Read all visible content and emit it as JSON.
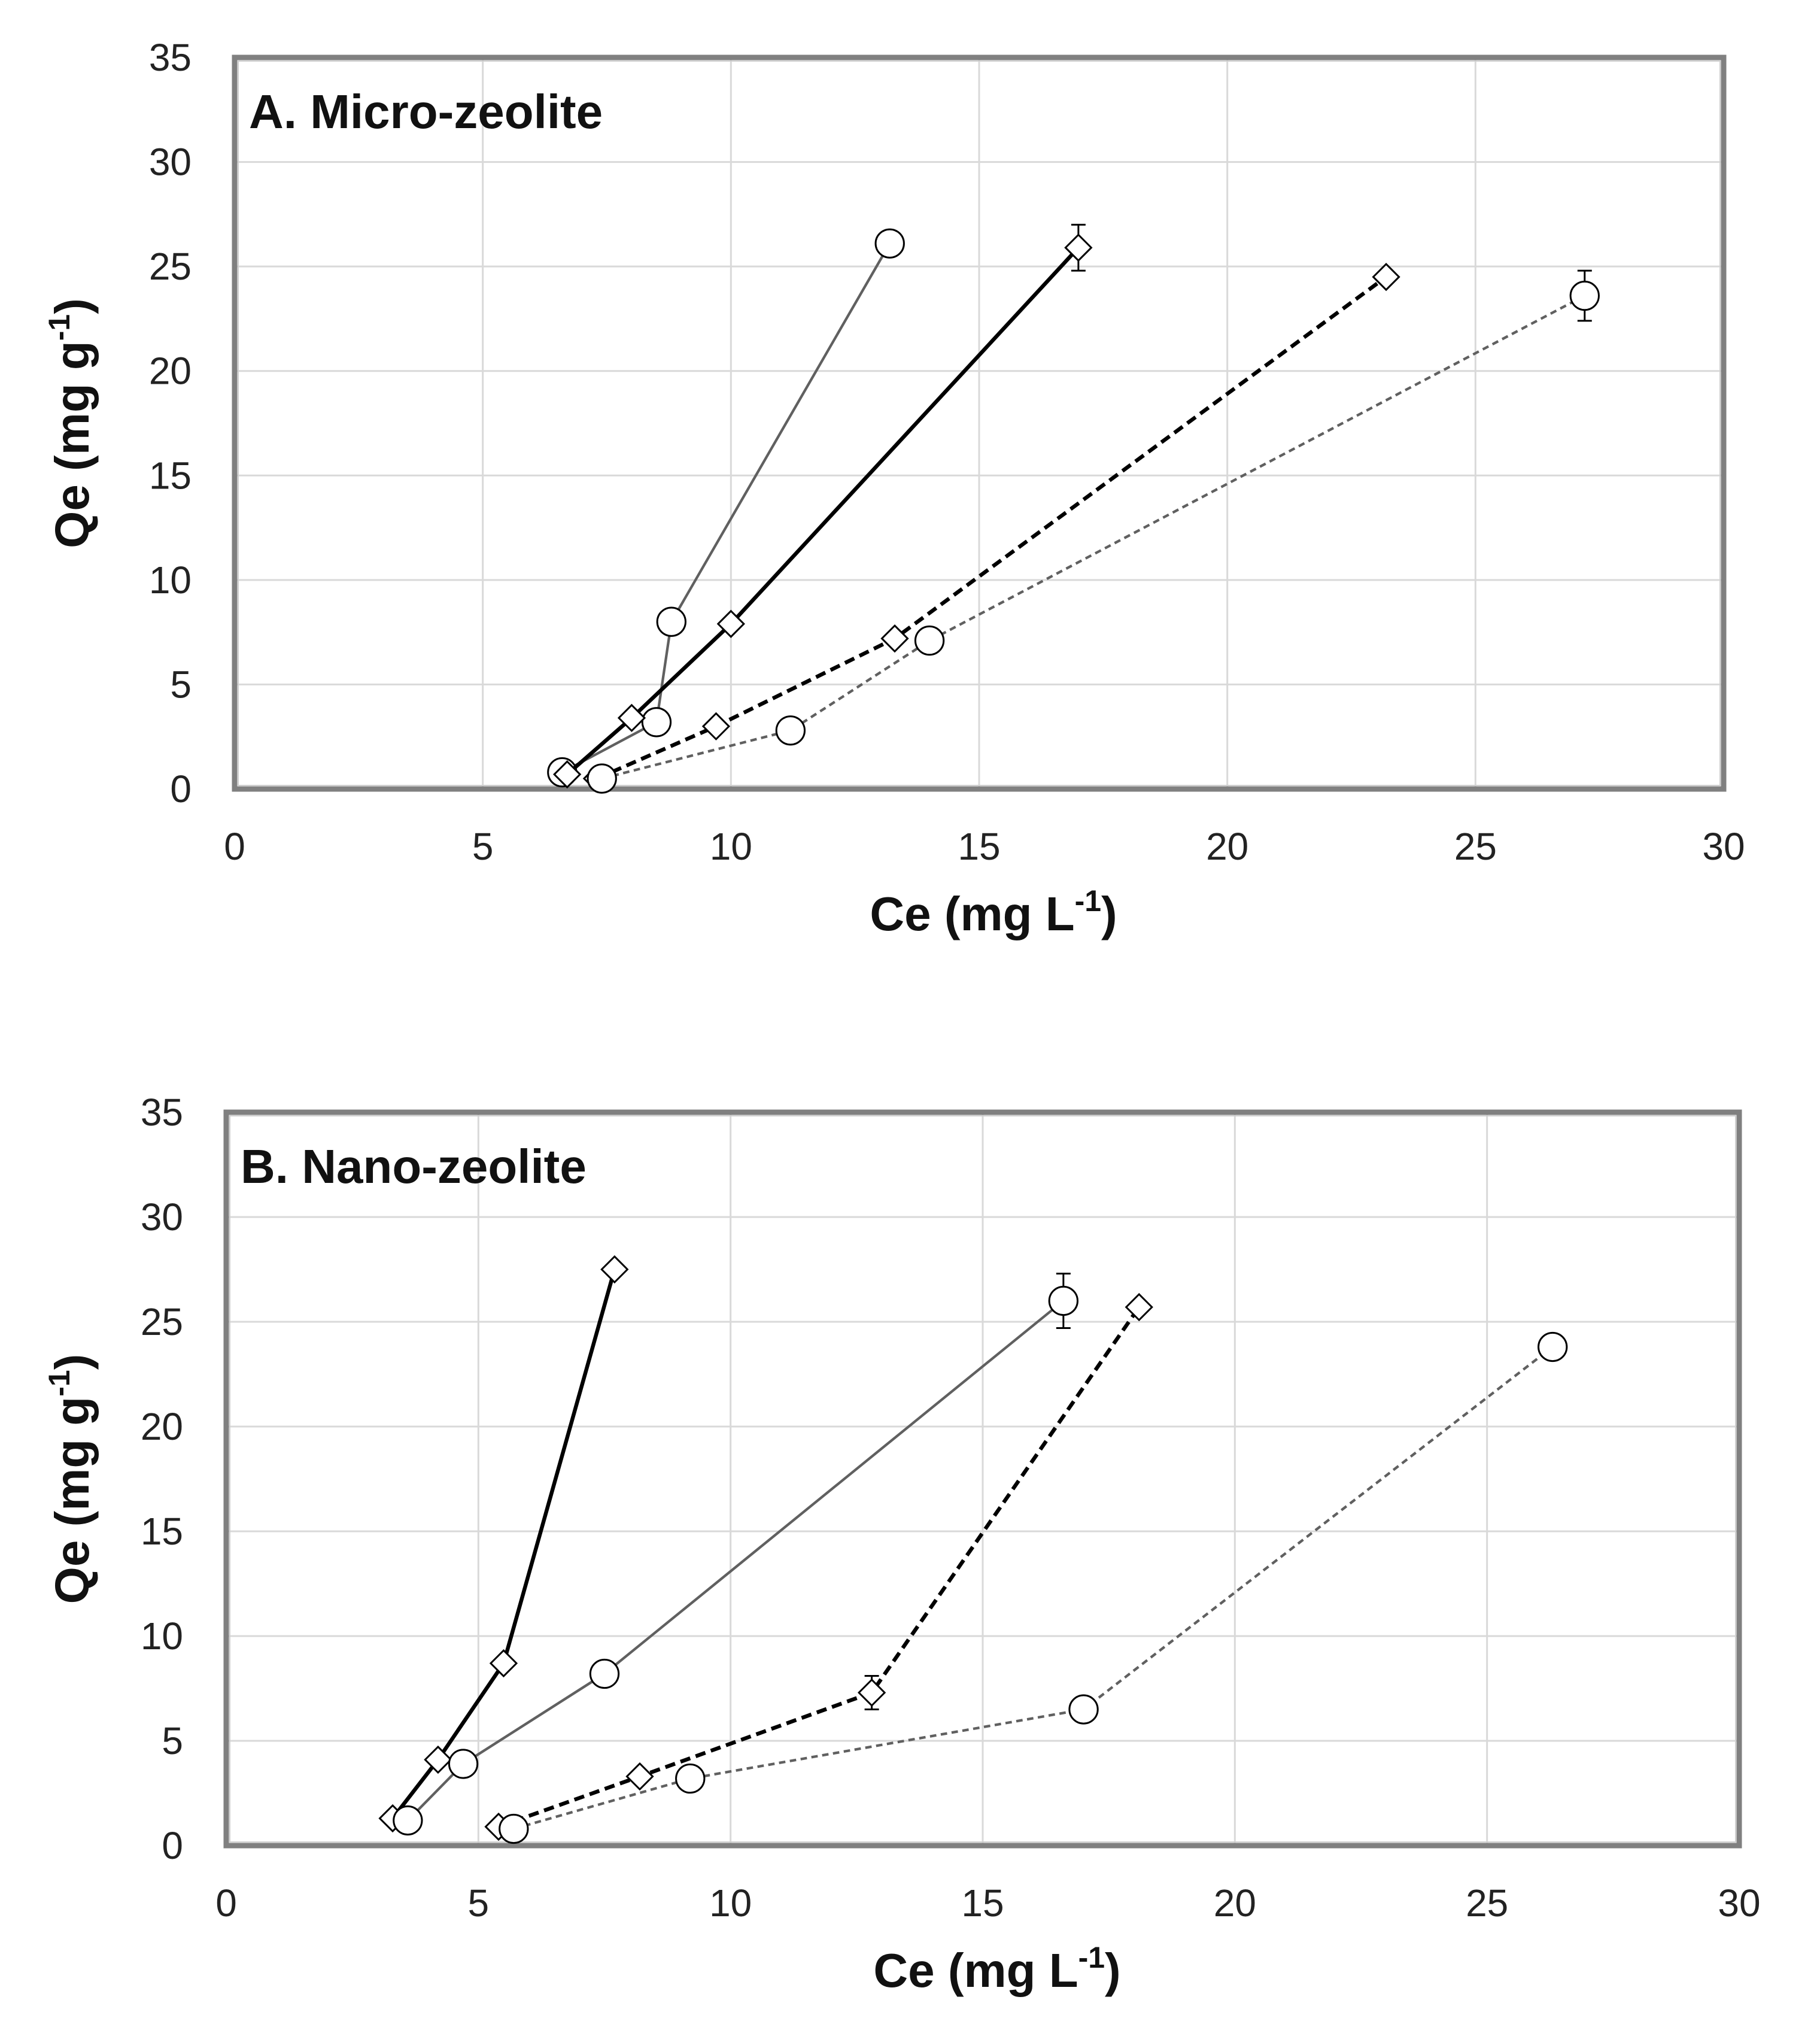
{
  "chart_data": [
    {
      "type": "line",
      "title": "A. Micro-zeolite",
      "xlabel": "Ce (mg L-1)",
      "xlabel_main": "Ce (mg L",
      "xlabel_sup": "-1",
      "xlabel_end": ")",
      "ylabel_main": "Qe (mg  g",
      "ylabel_sup": "-1",
      "ylabel_end": ")",
      "xlim": [
        0,
        30
      ],
      "ylim": [
        0,
        35
      ],
      "xticks": [
        0,
        5,
        10,
        15,
        20,
        25,
        30
      ],
      "yticks": [
        0,
        5,
        10,
        15,
        20,
        25,
        30,
        35
      ],
      "xtick_labels": [
        "0",
        "5",
        "10",
        "15",
        "20",
        "25",
        "30"
      ],
      "ytick_labels": [
        "0",
        "5",
        "10",
        "15",
        "20",
        "25",
        "30",
        "35"
      ],
      "grid": true,
      "series": [
        {
          "name": "gray-solid-circle",
          "color": "#606060",
          "dash": "solid",
          "width": 2,
          "marker": "circle",
          "points": [
            [
              6.6,
              0.8
            ],
            [
              8.5,
              3.2
            ],
            [
              8.8,
              8.0
            ],
            [
              13.2,
              26.1
            ]
          ],
          "errors": [
            0,
            0,
            0,
            0
          ]
        },
        {
          "name": "black-solid-diamond",
          "color": "#000000",
          "dash": "solid",
          "width": 3,
          "marker": "diamond",
          "points": [
            [
              6.7,
              0.7
            ],
            [
              8.0,
              3.4
            ],
            [
              10.0,
              7.9
            ],
            [
              17.0,
              25.9
            ]
          ],
          "errors": [
            0,
            0,
            0,
            1.1
          ]
        },
        {
          "name": "black-dashed-diamond",
          "color": "#000000",
          "dash": "dashed",
          "width": 3,
          "marker": "diamond",
          "points": [
            [
              7.3,
              0.5
            ],
            [
              9.7,
              3.0
            ],
            [
              13.3,
              7.2
            ],
            [
              23.2,
              24.5
            ]
          ],
          "errors": [
            0,
            0,
            0,
            0
          ]
        },
        {
          "name": "gray-dashed-circle",
          "color": "#606060",
          "dash": "dashed",
          "width": 2,
          "marker": "circle",
          "points": [
            [
              7.4,
              0.5
            ],
            [
              11.2,
              2.8
            ],
            [
              14.0,
              7.1
            ],
            [
              27.2,
              23.6
            ]
          ],
          "errors": [
            0,
            0,
            0,
            1.2
          ]
        }
      ]
    },
    {
      "type": "line",
      "title": "B. Nano-zeolite",
      "xlabel": "Ce (mg L-1)",
      "xlabel_main": "Ce (mg L",
      "xlabel_sup": "-1",
      "xlabel_end": ")",
      "ylabel_main": "Qe (mg  g",
      "ylabel_sup": "-1",
      "ylabel_end": ")",
      "xlim": [
        0,
        30
      ],
      "ylim": [
        0,
        35
      ],
      "xticks": [
        0,
        5,
        10,
        15,
        20,
        25,
        30
      ],
      "yticks": [
        0,
        5,
        10,
        15,
        20,
        25,
        30,
        35
      ],
      "xtick_labels": [
        "0",
        "5",
        "10",
        "15",
        "20",
        "25",
        "30"
      ],
      "ytick_labels": [
        "0",
        "5",
        "10",
        "15",
        "20",
        "25",
        "30",
        "35"
      ],
      "grid": true,
      "series": [
        {
          "name": "black-solid-diamond",
          "color": "#000000",
          "dash": "solid",
          "width": 3,
          "marker": "diamond",
          "points": [
            [
              3.3,
              1.3
            ],
            [
              4.2,
              4.1
            ],
            [
              5.5,
              8.7
            ],
            [
              7.7,
              27.5
            ]
          ],
          "errors": [
            0,
            0,
            0,
            0
          ]
        },
        {
          "name": "gray-solid-circle",
          "color": "#606060",
          "dash": "solid",
          "width": 2,
          "marker": "circle",
          "points": [
            [
              3.6,
              1.2
            ],
            [
              4.7,
              3.9
            ],
            [
              7.5,
              8.2
            ],
            [
              16.6,
              26.0
            ]
          ],
          "errors": [
            0,
            0,
            0,
            1.3
          ]
        },
        {
          "name": "black-dashed-diamond",
          "color": "#000000",
          "dash": "dashed",
          "width": 3,
          "marker": "diamond",
          "points": [
            [
              5.4,
              0.9
            ],
            [
              8.2,
              3.3
            ],
            [
              12.8,
              7.3
            ],
            [
              18.1,
              25.7
            ]
          ],
          "errors": [
            0,
            0,
            0.8,
            0
          ]
        },
        {
          "name": "gray-dashed-circle",
          "color": "#606060",
          "dash": "dashed",
          "width": 2,
          "marker": "circle",
          "points": [
            [
              5.7,
              0.8
            ],
            [
              9.2,
              3.2
            ],
            [
              17.0,
              6.5
            ],
            [
              26.3,
              23.8
            ]
          ],
          "errors": [
            0,
            0,
            0,
            0
          ]
        }
      ]
    }
  ]
}
